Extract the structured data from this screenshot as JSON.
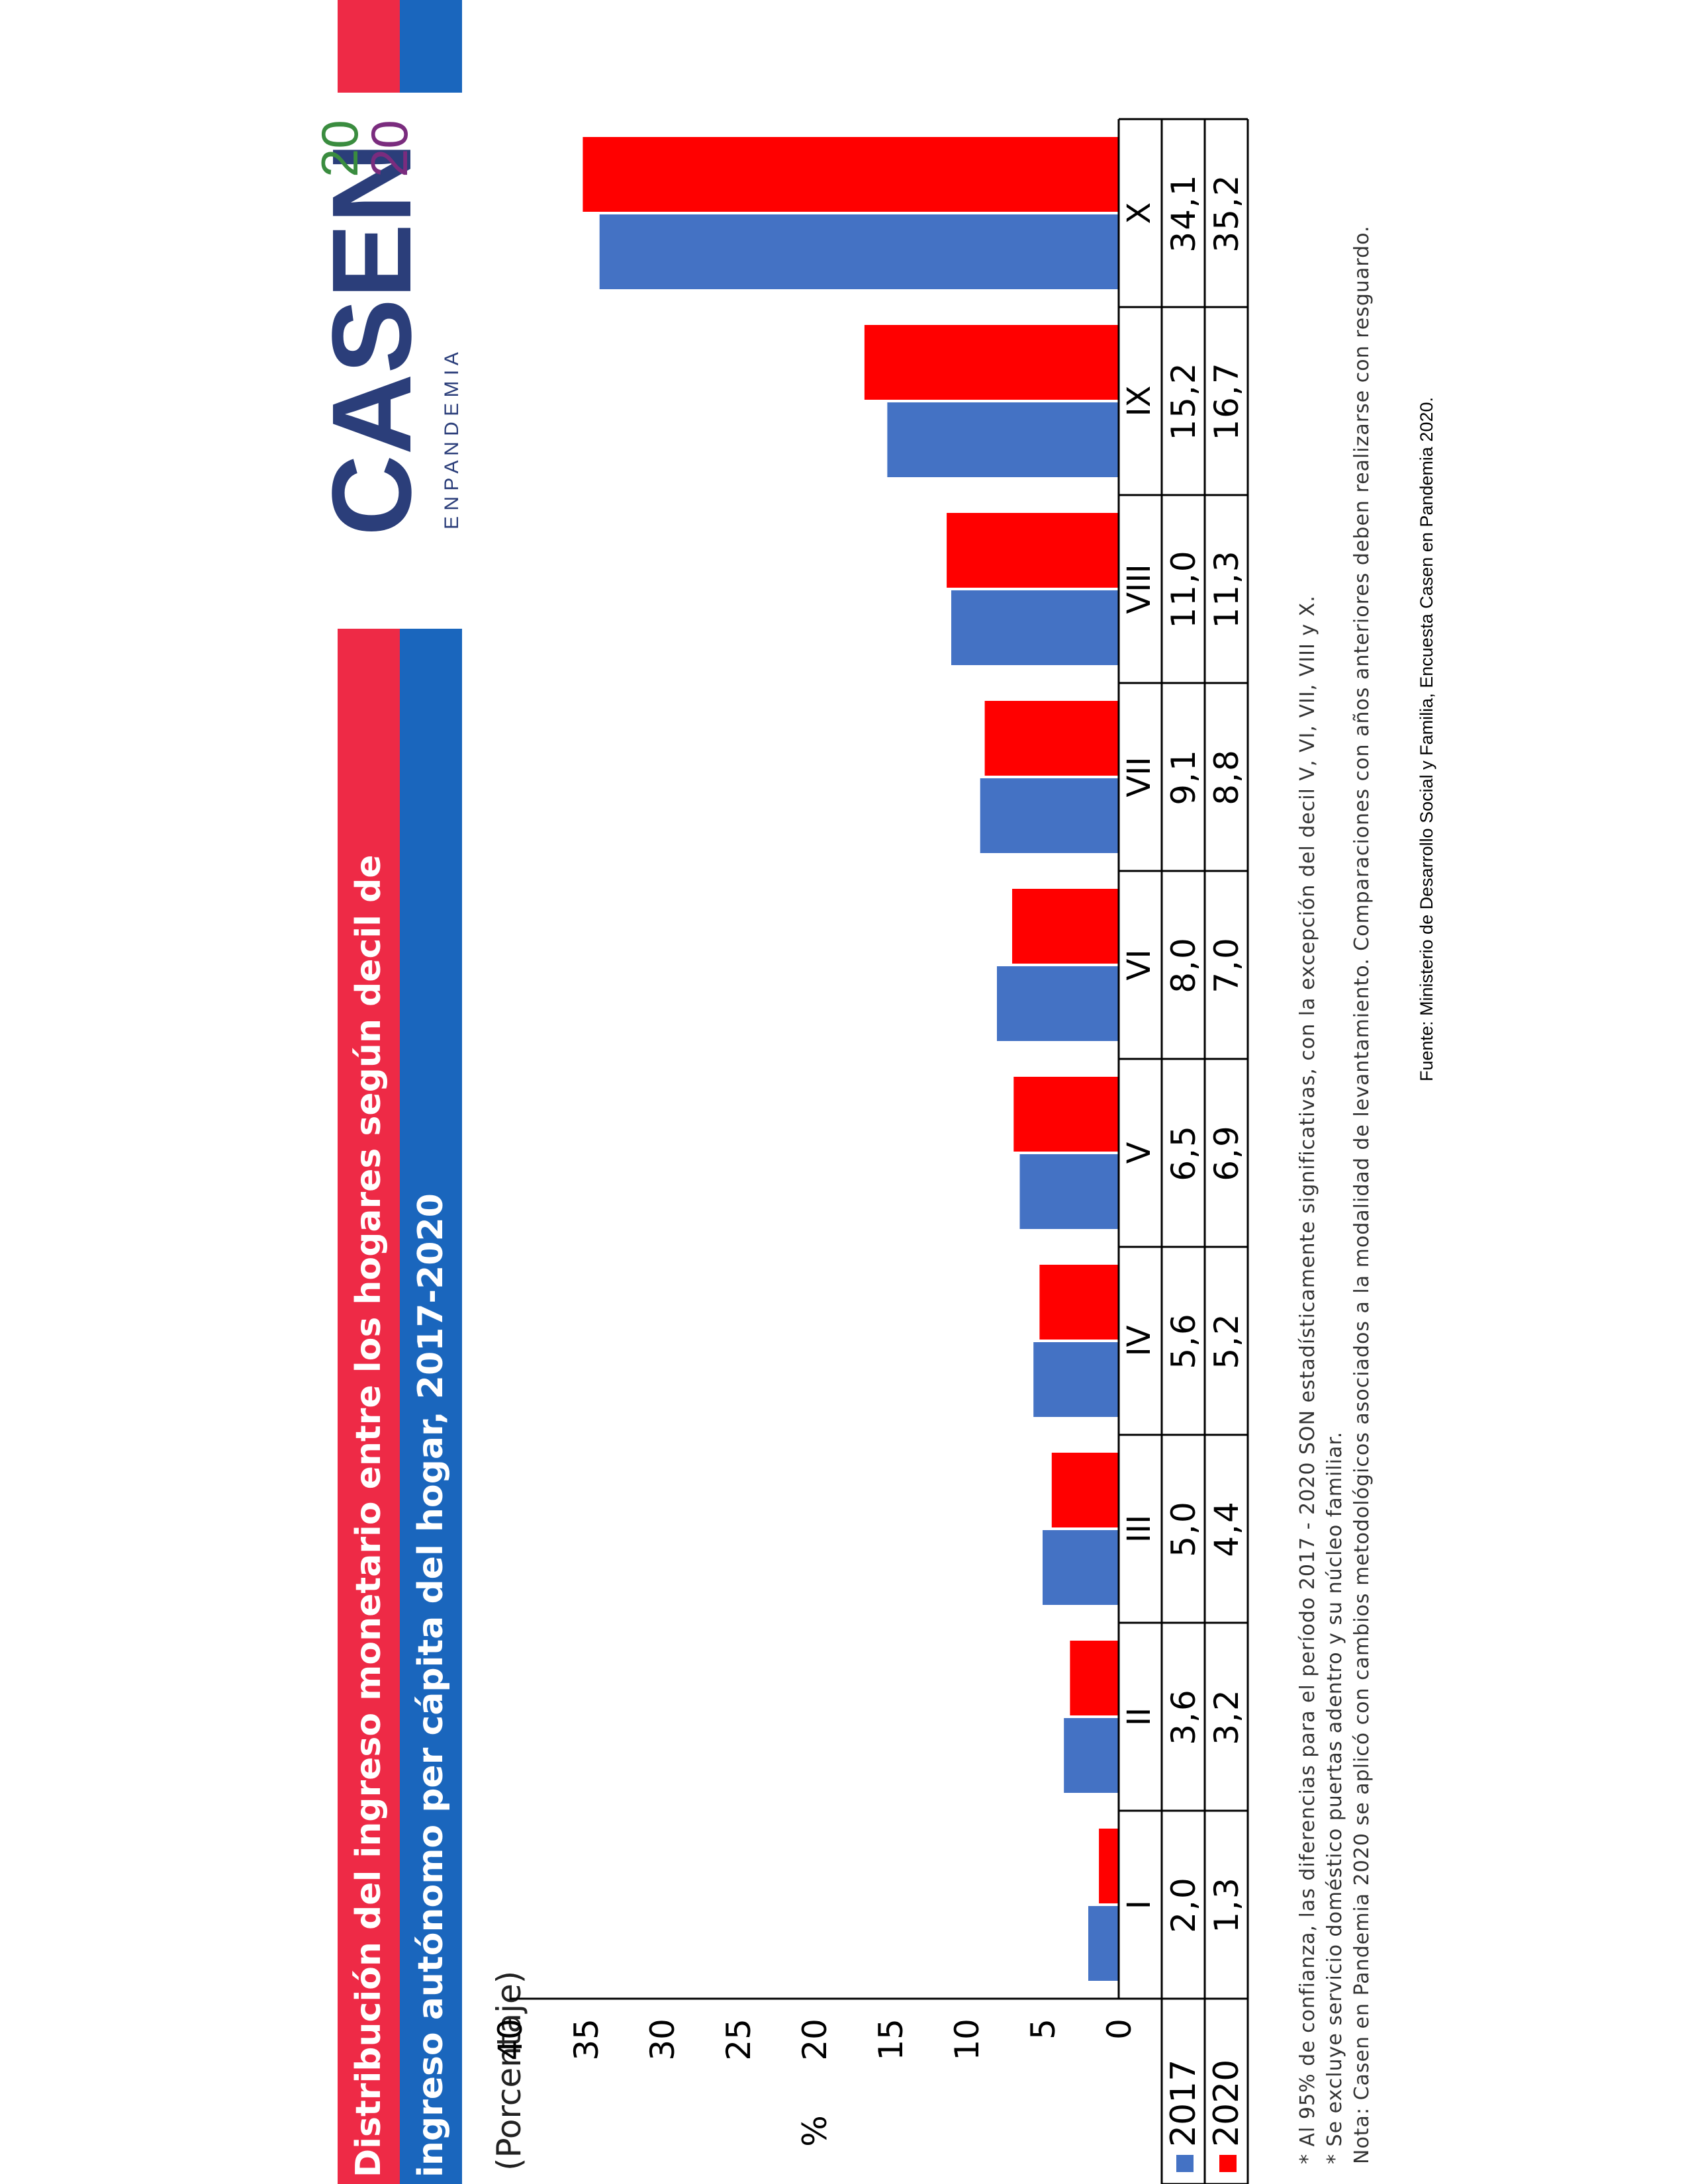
{
  "title": {
    "line1": "Distribución del ingreso monetario entre los hogares según decil de",
    "line2": "ingreso autónomo per cápita del hogar, 2017-2020"
  },
  "logo": {
    "word": "CASEN",
    "year_top": "20",
    "year_bottom": "20",
    "tagline": "E N P A N D E M I A"
  },
  "subtitle": "(Porcentaje)",
  "colors": {
    "s2017": "#4472c4",
    "s2020": "#ff0000",
    "accent_red": "#ee2a46",
    "accent_blue": "#1a66bd",
    "logo_navy": "#2b3e7a"
  },
  "chart_data": {
    "type": "bar",
    "categories": [
      "I",
      "II",
      "III",
      "IV",
      "V",
      "VI",
      "VII",
      "VIII",
      "IX",
      "X"
    ],
    "series": [
      {
        "name": "2017",
        "values": [
          "2,0",
          "3,6",
          "5,0",
          "5,6",
          "6,5",
          "8,0",
          "9,1",
          "11,0",
          "15,2",
          "34,1"
        ]
      },
      {
        "name": "2020",
        "values": [
          "1,3",
          "3,2",
          "4,4",
          "5,2",
          "6,9",
          "7,0",
          "8,8",
          "11,3",
          "16,7",
          "35,2"
        ]
      }
    ],
    "ylabel": "%",
    "ylim": [
      0,
      40
    ],
    "yticks": [
      "0",
      "5",
      "10",
      "15",
      "20",
      "25",
      "30",
      "35",
      "40"
    ],
    "grid": false,
    "legend": "data-table"
  },
  "notes": [
    "* Al 95% de confianza, las diferencias para el período 2017 - 2020 SON estadísticamente significativas, con la excepción del decil V, VI, VII, VIII y X.",
    "* Se excluye servicio doméstico puertas adentro y su núcleo familiar.",
    "Nota: Casen en Pandemia 2020 se aplicó con cambios metodológicos asociados a la modalidad de levantamiento. Comparaciones con años anteriores deben realizarse con resguardo."
  ],
  "source": "Fuente: Ministerio de Desarrollo Social y Familia, Encuesta Casen en Pandemia 2020."
}
